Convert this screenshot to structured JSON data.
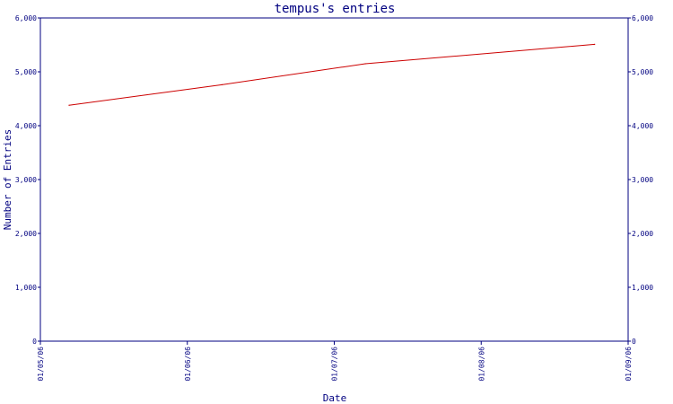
{
  "chart_data": {
    "type": "line",
    "title": "tempus's entries",
    "xlabel": "Date",
    "ylabel": "Number of Entries",
    "x_tick_labels": [
      "01/05/06",
      "01/06/06",
      "01/07/06",
      "01/08/06",
      "01/09/06"
    ],
    "y_tick_labels": [
      "0",
      "1,000",
      "2,000",
      "3,000",
      "4,000",
      "5,000",
      "6,000"
    ],
    "ylim": [
      0,
      6000
    ],
    "xlim": [
      "2006-05-01",
      "2006-09-01"
    ],
    "series": [
      {
        "x": [
          "2006-05-07",
          "2006-06-08",
          "2006-07-08",
          "2006-08-25"
        ],
        "values": [
          4380,
          4760,
          5150,
          5510
        ]
      }
    ],
    "grid": false,
    "right_axis_mirrors_left": true,
    "colors": {
      "axis": "#000080",
      "line": "#cc0000",
      "background": "#ffffff"
    }
  }
}
